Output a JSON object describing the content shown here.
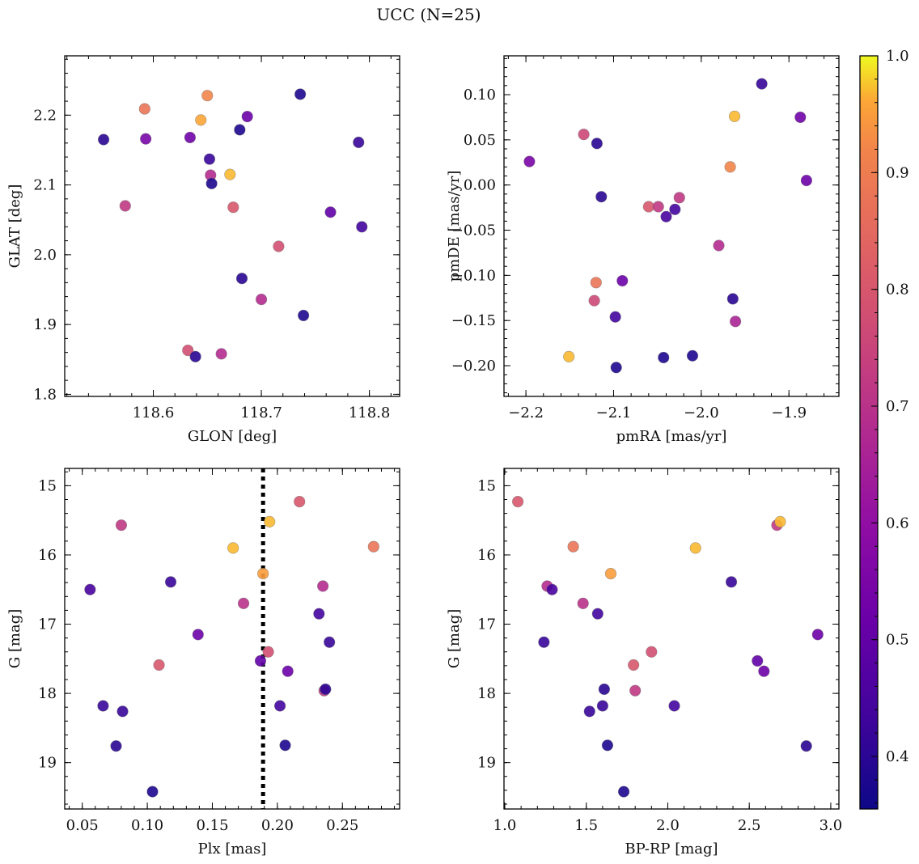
{
  "figure": {
    "title": "UCC (N=25)"
  },
  "colorbar": {
    "range": [
      0.355,
      1.0
    ],
    "ticks": [
      0.4,
      0.5,
      0.6,
      0.7,
      0.8,
      0.9,
      1.0
    ],
    "tick_labels": [
      "0.4",
      "0.5",
      "0.6",
      "0.7",
      "0.8",
      "0.9",
      "1.0"
    ],
    "colormap": "plasma"
  },
  "chart_data": [
    {
      "type": "scatter",
      "id": "glon-glat",
      "xlabel": "GLON [deg]",
      "ylabel": "GLAT [deg]",
      "xlim": [
        118.518,
        118.828
      ],
      "ylim": [
        1.797,
        2.285
      ],
      "xticks": [
        118.6,
        118.7,
        118.8
      ],
      "xtick_labels": [
        "118.6",
        "118.7",
        "118.8"
      ],
      "yticks": [
        1.8,
        1.9,
        2.0,
        2.1,
        2.2
      ],
      "ytick_labels": [
        "1.8",
        "1.9",
        "2.0",
        "2.1",
        "2.2"
      ],
      "points": [
        {
          "x": 118.554,
          "y": 2.165,
          "c": 0.4
        },
        {
          "x": 118.574,
          "y": 2.07,
          "c": 0.72
        },
        {
          "x": 118.592,
          "y": 2.209,
          "c": 0.88
        },
        {
          "x": 118.593,
          "y": 2.166,
          "c": 0.55
        },
        {
          "x": 118.632,
          "y": 1.863,
          "c": 0.78
        },
        {
          "x": 118.634,
          "y": 2.168,
          "c": 0.53
        },
        {
          "x": 118.639,
          "y": 1.854,
          "c": 0.4
        },
        {
          "x": 118.644,
          "y": 2.193,
          "c": 0.96
        },
        {
          "x": 118.65,
          "y": 2.228,
          "c": 0.92
        },
        {
          "x": 118.652,
          "y": 2.137,
          "c": 0.42
        },
        {
          "x": 118.653,
          "y": 2.114,
          "c": 0.68
        },
        {
          "x": 118.654,
          "y": 2.102,
          "c": 0.38
        },
        {
          "x": 118.663,
          "y": 1.858,
          "c": 0.68
        },
        {
          "x": 118.671,
          "y": 2.115,
          "c": 0.97
        },
        {
          "x": 118.674,
          "y": 2.068,
          "c": 0.8
        },
        {
          "x": 118.68,
          "y": 2.179,
          "c": 0.38
        },
        {
          "x": 118.682,
          "y": 1.966,
          "c": 0.4
        },
        {
          "x": 118.687,
          "y": 2.198,
          "c": 0.52
        },
        {
          "x": 118.7,
          "y": 1.936,
          "c": 0.68
        },
        {
          "x": 118.716,
          "y": 2.012,
          "c": 0.78
        },
        {
          "x": 118.736,
          "y": 2.23,
          "c": 0.38
        },
        {
          "x": 118.739,
          "y": 1.913,
          "c": 0.38
        },
        {
          "x": 118.764,
          "y": 2.061,
          "c": 0.5
        },
        {
          "x": 118.79,
          "y": 2.161,
          "c": 0.42
        },
        {
          "x": 118.793,
          "y": 2.04,
          "c": 0.44
        }
      ]
    },
    {
      "type": "scatter",
      "id": "pmra-pmde",
      "xlabel": "pmRA [mas/yr]",
      "ylabel": "pmDE [mas/yr]",
      "xlim": [
        -2.225,
        -1.843
      ],
      "ylim": [
        -0.234,
        0.143
      ],
      "xticks": [
        -2.2,
        -2.1,
        -2.0,
        -1.9
      ],
      "xtick_labels": [
        "−2.2",
        "−2.1",
        "−2.0",
        "−1.9"
      ],
      "yticks": [
        -0.2,
        -0.15,
        -0.1,
        -0.05,
        0.0,
        0.05,
        0.1
      ],
      "ytick_labels": [
        "−0.20",
        "−0.15",
        "−0.10",
        "−0.05",
        "0.00",
        "0.05",
        "0.10"
      ],
      "points": [
        {
          "x": -2.196,
          "y": 0.026,
          "c": 0.55
        },
        {
          "x": -2.151,
          "y": -0.19,
          "c": 0.97
        },
        {
          "x": -2.134,
          "y": 0.056,
          "c": 0.76
        },
        {
          "x": -2.122,
          "y": -0.128,
          "c": 0.76
        },
        {
          "x": -2.12,
          "y": -0.108,
          "c": 0.88
        },
        {
          "x": -2.119,
          "y": 0.046,
          "c": 0.4
        },
        {
          "x": -2.114,
          "y": -0.013,
          "c": 0.4
        },
        {
          "x": -2.098,
          "y": -0.146,
          "c": 0.44
        },
        {
          "x": -2.097,
          "y": -0.202,
          "c": 0.38
        },
        {
          "x": -2.09,
          "y": -0.106,
          "c": 0.52
        },
        {
          "x": -2.06,
          "y": -0.024,
          "c": 0.8
        },
        {
          "x": -2.049,
          "y": -0.024,
          "c": 0.72
        },
        {
          "x": -2.043,
          "y": -0.191,
          "c": 0.38
        },
        {
          "x": -2.04,
          "y": -0.035,
          "c": 0.45
        },
        {
          "x": -2.03,
          "y": -0.027,
          "c": 0.44
        },
        {
          "x": -2.025,
          "y": -0.014,
          "c": 0.72
        },
        {
          "x": -2.01,
          "y": -0.189,
          "c": 0.38
        },
        {
          "x": -1.98,
          "y": -0.067,
          "c": 0.68
        },
        {
          "x": -1.967,
          "y": 0.02,
          "c": 0.92
        },
        {
          "x": -1.964,
          "y": -0.126,
          "c": 0.4
        },
        {
          "x": -1.962,
          "y": 0.076,
          "c": 0.97
        },
        {
          "x": -1.961,
          "y": -0.151,
          "c": 0.66
        },
        {
          "x": -1.931,
          "y": 0.112,
          "c": 0.42
        },
        {
          "x": -1.887,
          "y": 0.075,
          "c": 0.53
        },
        {
          "x": -1.88,
          "y": 0.005,
          "c": 0.52
        }
      ]
    },
    {
      "type": "scatter",
      "id": "plx-g",
      "xlabel": "Plx [mas]",
      "ylabel": "G [mag]",
      "xlim": [
        0.0365,
        0.294
      ],
      "ylim": [
        19.67,
        14.75
      ],
      "y_inverted": true,
      "xticks": [
        0.05,
        0.1,
        0.15,
        0.2,
        0.25
      ],
      "xtick_labels": [
        "0.05",
        "0.10",
        "0.15",
        "0.20",
        "0.25"
      ],
      "yticks": [
        15,
        16,
        17,
        18,
        19
      ],
      "ytick_labels": [
        "15",
        "16",
        "17",
        "18",
        "19"
      ],
      "vline": 0.189,
      "points": [
        {
          "x": 0.056,
          "y": 16.5,
          "c": 0.45
        },
        {
          "x": 0.066,
          "y": 18.18,
          "c": 0.42
        },
        {
          "x": 0.076,
          "y": 18.76,
          "c": 0.4
        },
        {
          "x": 0.08,
          "y": 15.57,
          "c": 0.72
        },
        {
          "x": 0.081,
          "y": 18.26,
          "c": 0.42
        },
        {
          "x": 0.104,
          "y": 19.42,
          "c": 0.38
        },
        {
          "x": 0.109,
          "y": 17.59,
          "c": 0.8
        },
        {
          "x": 0.118,
          "y": 16.39,
          "c": 0.42
        },
        {
          "x": 0.139,
          "y": 17.15,
          "c": 0.52
        },
        {
          "x": 0.166,
          "y": 15.9,
          "c": 0.97
        },
        {
          "x": 0.174,
          "y": 16.7,
          "c": 0.7
        },
        {
          "x": 0.187,
          "y": 17.53,
          "c": 0.5
        },
        {
          "x": 0.189,
          "y": 16.27,
          "c": 0.95
        },
        {
          "x": 0.193,
          "y": 17.4,
          "c": 0.78
        },
        {
          "x": 0.194,
          "y": 15.52,
          "c": 0.97
        },
        {
          "x": 0.202,
          "y": 18.18,
          "c": 0.44
        },
        {
          "x": 0.206,
          "y": 18.75,
          "c": 0.38
        },
        {
          "x": 0.208,
          "y": 17.68,
          "c": 0.52
        },
        {
          "x": 0.217,
          "y": 15.23,
          "c": 0.8
        },
        {
          "x": 0.232,
          "y": 16.85,
          "c": 0.44
        },
        {
          "x": 0.235,
          "y": 16.45,
          "c": 0.68
        },
        {
          "x": 0.236,
          "y": 17.96,
          "c": 0.72
        },
        {
          "x": 0.237,
          "y": 17.94,
          "c": 0.4
        },
        {
          "x": 0.24,
          "y": 17.26,
          "c": 0.42
        },
        {
          "x": 0.274,
          "y": 15.88,
          "c": 0.88
        }
      ]
    },
    {
      "type": "scatter",
      "id": "bprp-g",
      "xlabel": "BP-RP [mag]",
      "ylabel": "G [mag]",
      "xlim": [
        0.995,
        3.05
      ],
      "ylim": [
        19.67,
        14.75
      ],
      "y_inverted": true,
      "xticks": [
        1.0,
        1.5,
        2.0,
        2.5,
        3.0
      ],
      "xtick_labels": [
        "1.0",
        "1.5",
        "2.0",
        "2.5",
        "3.0"
      ],
      "yticks": [
        15,
        16,
        17,
        18,
        19
      ],
      "ytick_labels": [
        "15",
        "16",
        "17",
        "18",
        "19"
      ],
      "points": [
        {
          "x": 1.08,
          "y": 15.23,
          "c": 0.8
        },
        {
          "x": 1.24,
          "y": 17.26,
          "c": 0.42
        },
        {
          "x": 1.26,
          "y": 16.45,
          "c": 0.68
        },
        {
          "x": 1.29,
          "y": 16.5,
          "c": 0.45
        },
        {
          "x": 1.42,
          "y": 15.88,
          "c": 0.88
        },
        {
          "x": 1.48,
          "y": 16.7,
          "c": 0.7
        },
        {
          "x": 1.52,
          "y": 18.26,
          "c": 0.42
        },
        {
          "x": 1.57,
          "y": 16.85,
          "c": 0.44
        },
        {
          "x": 1.6,
          "y": 18.18,
          "c": 0.42
        },
        {
          "x": 1.61,
          "y": 17.94,
          "c": 0.4
        },
        {
          "x": 1.63,
          "y": 18.75,
          "c": 0.38
        },
        {
          "x": 1.65,
          "y": 16.27,
          "c": 0.95
        },
        {
          "x": 1.73,
          "y": 19.42,
          "c": 0.38
        },
        {
          "x": 1.79,
          "y": 17.59,
          "c": 0.8
        },
        {
          "x": 1.8,
          "y": 17.96,
          "c": 0.72
        },
        {
          "x": 1.9,
          "y": 17.4,
          "c": 0.78
        },
        {
          "x": 2.04,
          "y": 18.18,
          "c": 0.44
        },
        {
          "x": 2.17,
          "y": 15.9,
          "c": 0.97
        },
        {
          "x": 2.39,
          "y": 16.39,
          "c": 0.42
        },
        {
          "x": 2.55,
          "y": 17.53,
          "c": 0.5
        },
        {
          "x": 2.59,
          "y": 17.68,
          "c": 0.52
        },
        {
          "x": 2.67,
          "y": 15.57,
          "c": 0.72
        },
        {
          "x": 2.69,
          "y": 15.52,
          "c": 0.97
        },
        {
          "x": 2.85,
          "y": 18.76,
          "c": 0.4
        },
        {
          "x": 2.92,
          "y": 17.15,
          "c": 0.52
        }
      ]
    }
  ]
}
